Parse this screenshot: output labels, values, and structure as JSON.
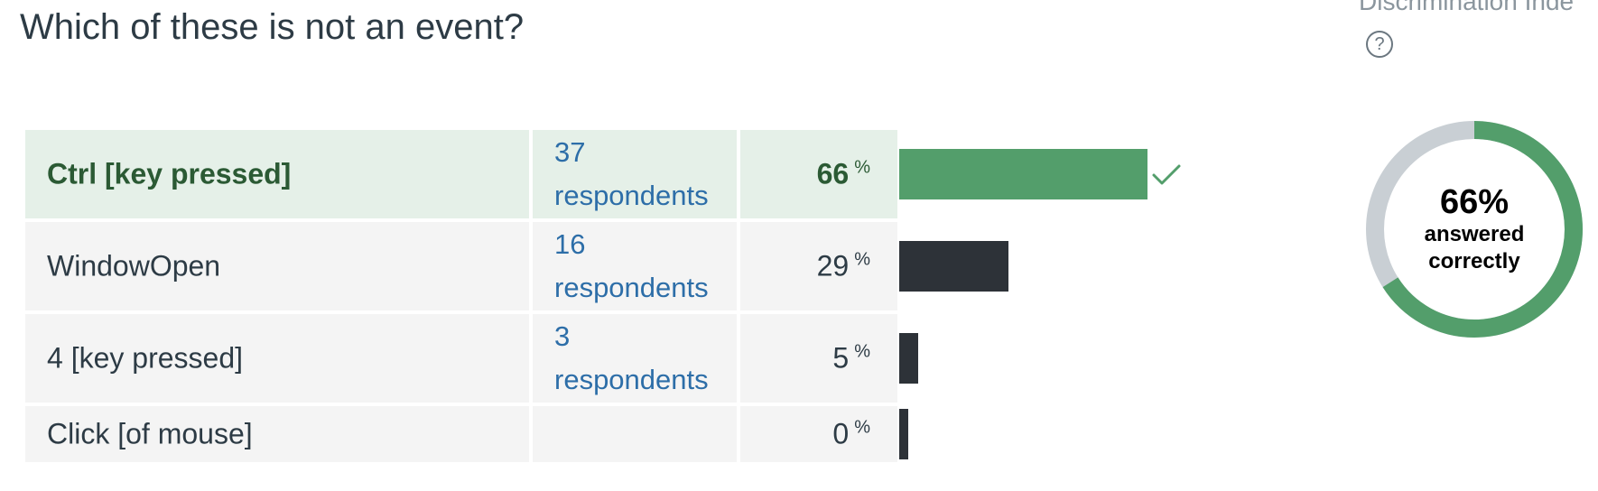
{
  "question": {
    "title": "Which of these is not an event?"
  },
  "sidebar": {
    "discrimination_label": "Discrimination Inde",
    "help_glyph": "?"
  },
  "answers": [
    {
      "text": "Ctrl [key pressed]",
      "count": "37",
      "count_suffix": "respondents",
      "percent": "66",
      "percent_sign": "%",
      "fraction": 0.66,
      "correct": true
    },
    {
      "text": "WindowOpen",
      "count": "16",
      "count_suffix": "respondents",
      "percent": "29",
      "percent_sign": "%",
      "fraction": 0.29,
      "correct": false
    },
    {
      "text": "4 [key pressed]",
      "count": "3",
      "count_suffix": "respondents",
      "percent": "5",
      "percent_sign": "%",
      "fraction": 0.05,
      "correct": false
    },
    {
      "text": "Click [of mouse]",
      "count": "",
      "count_suffix": "",
      "percent": "0",
      "percent_sign": "%",
      "fraction": 0.0,
      "correct": false
    }
  ],
  "summary": {
    "percent_label": "66%",
    "line1": "answered",
    "line2": "correctly",
    "fraction_correct": 0.66
  },
  "colors": {
    "correct_green": "#539e6b",
    "correct_text": "#2b5a34",
    "bar_dark": "#2d3238",
    "donut_remaining": "#c9cfd4",
    "link_blue": "#2d6ea8"
  },
  "icons": {
    "correct_marker": "check-icon",
    "help": "help-icon"
  }
}
